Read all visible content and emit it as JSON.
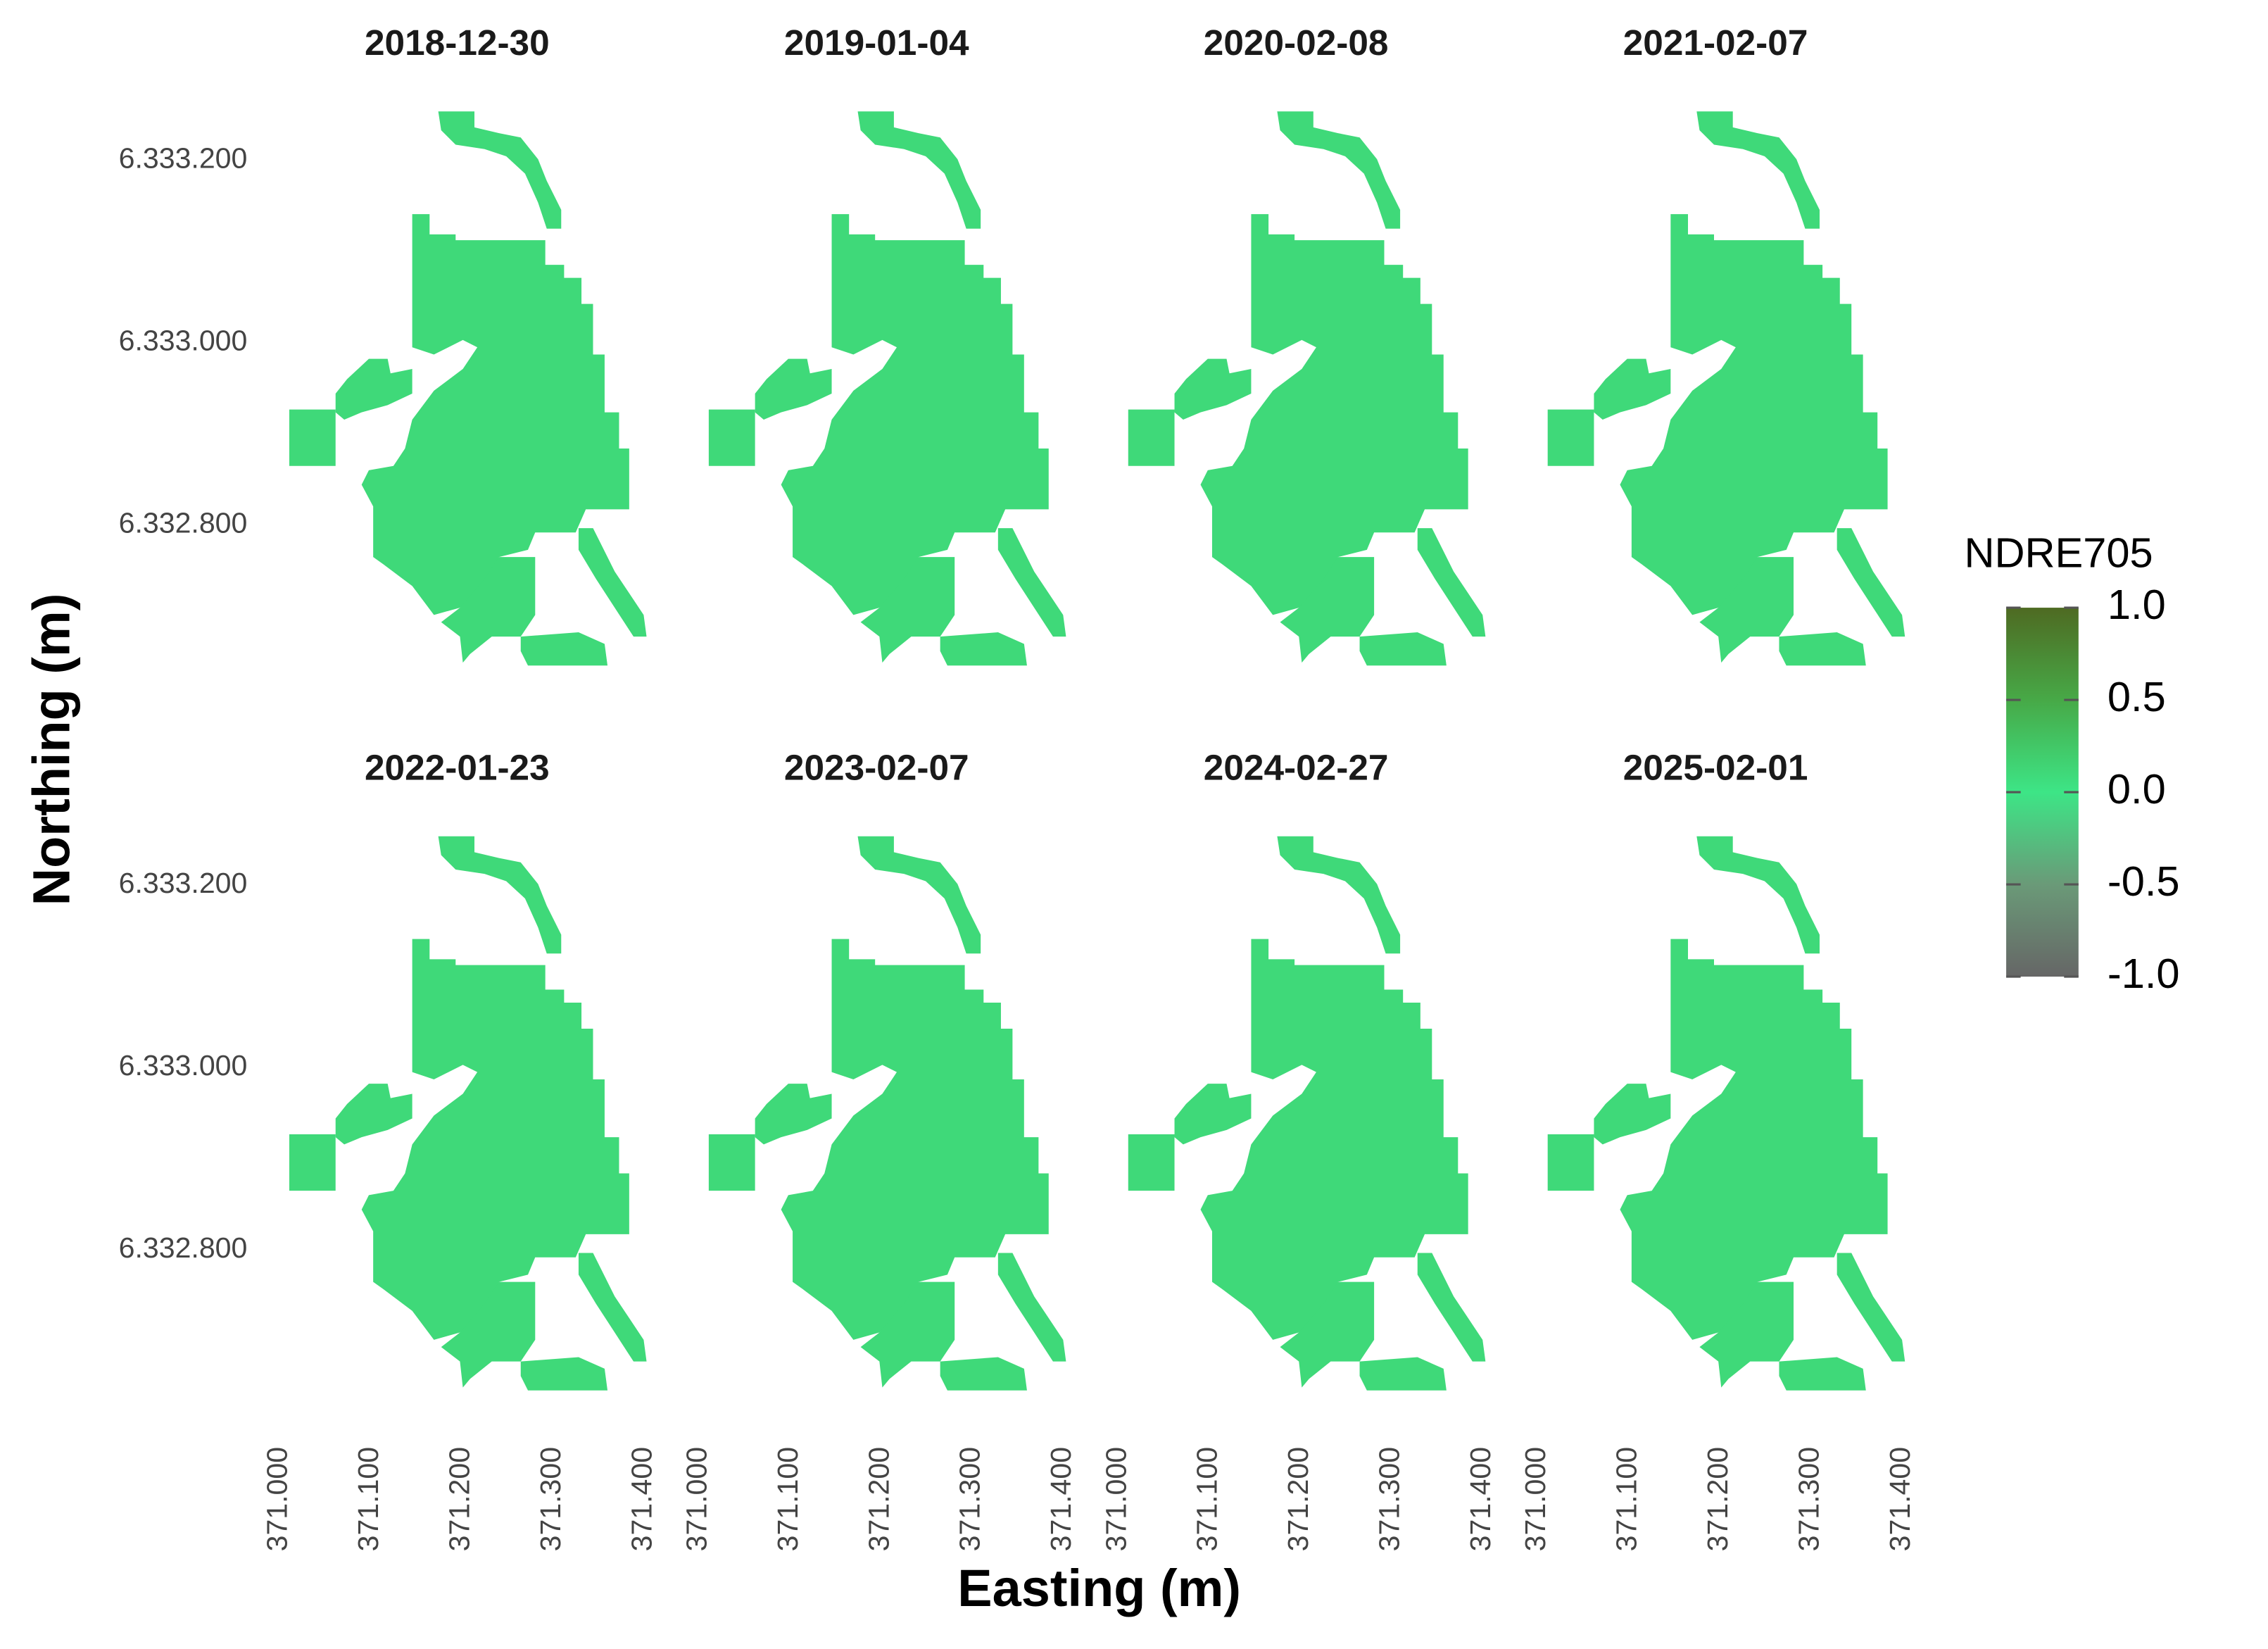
{
  "chart_data": {
    "type": "raster",
    "x_label": "Easting (m)",
    "y_label": "Northing (m)",
    "xlim": [
      371000,
      371400
    ],
    "ylim": [
      6332640,
      6333260
    ],
    "xticks": [
      {
        "value": 371000,
        "label": "371.000"
      },
      {
        "value": 371100,
        "label": "371.100"
      },
      {
        "value": 371200,
        "label": "371.200"
      },
      {
        "value": 371300,
        "label": "371.300"
      },
      {
        "value": 371400,
        "label": "371.400"
      }
    ],
    "yticks": [
      {
        "value": 6332800,
        "label": "6.332.800"
      },
      {
        "value": 6333000,
        "label": "6.333.000"
      },
      {
        "value": 6333200,
        "label": "6.333.200"
      }
    ],
    "facets": [
      {
        "title": "2018-12-30",
        "value": 0.1
      },
      {
        "title": "2019-01-04",
        "value": 0.1
      },
      {
        "title": "2020-02-08",
        "value": 0.1
      },
      {
        "title": "2021-02-07",
        "value": 0.1
      },
      {
        "title": "2022-01-23",
        "value": 0.1
      },
      {
        "title": "2023-02-07",
        "value": 0.1
      },
      {
        "title": "2024-02-27",
        "value": 0.1
      },
      {
        "title": "2025-02-01",
        "value": 0.1
      }
    ],
    "colorbar": {
      "title": "NDRE705",
      "lim": [
        -1,
        1
      ],
      "ticks": [
        {
          "value": 1,
          "label": "1.0"
        },
        0.5,
        {
          "value": 0,
          "label": "0.0"
        },
        -0.5,
        {
          "value": -1,
          "label": "-1.0"
        }
      ],
      "colors": [
        "#666666",
        "#6a9a78",
        "#3de586",
        "#47a947",
        "#4e6a22"
      ]
    }
  }
}
